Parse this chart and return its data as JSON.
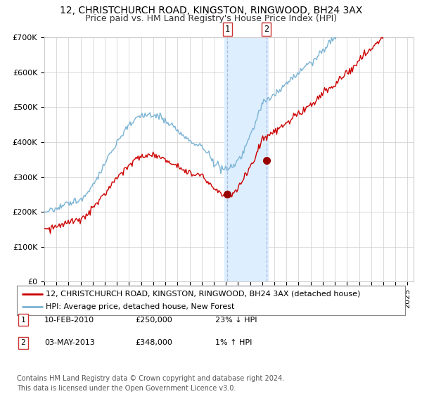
{
  "title": "12, CHRISTCHURCH ROAD, KINGSTON, RINGWOOD, BH24 3AX",
  "subtitle": "Price paid vs. HM Land Registry's House Price Index (HPI)",
  "ylim": [
    0,
    700000
  ],
  "yticks": [
    0,
    100000,
    200000,
    300000,
    400000,
    500000,
    600000,
    700000
  ],
  "ytick_labels": [
    "£0",
    "£100K",
    "£200K",
    "£300K",
    "£400K",
    "£500K",
    "£600K",
    "£700K"
  ],
  "xlim_start": 1995.0,
  "xlim_end": 2025.5,
  "hpi_color": "#7ab3d4",
  "price_color": "#cc0000",
  "marker_color": "#990000",
  "shade_color": "#ddeeff",
  "grid_color": "#cccccc",
  "bg_color": "#ffffff",
  "transaction1_x": 2010.11,
  "transaction1_y": 250000,
  "transaction2_x": 2013.34,
  "transaction2_y": 348000,
  "shade_x1": 2009.9,
  "shade_x2": 2013.5,
  "legend_line1": "12, CHRISTCHURCH ROAD, KINGSTON, RINGWOOD, BH24 3AX (detached house)",
  "legend_line2": "HPI: Average price, detached house, New Forest",
  "ann1_label": "1",
  "ann2_label": "2",
  "note1_num": "1",
  "note1_date": "10-FEB-2010",
  "note1_price": "£250,000",
  "note1_pct": "23% ↓ HPI",
  "note2_num": "2",
  "note2_date": "03-MAY-2013",
  "note2_price": "£348,000",
  "note2_pct": "1% ↑ HPI",
  "footer": "Contains HM Land Registry data © Crown copyright and database right 2024.\nThis data is licensed under the Open Government Licence v3.0.",
  "title_fontsize": 10,
  "subtitle_fontsize": 9,
  "tick_fontsize": 8,
  "legend_fontsize": 8,
  "note_fontsize": 8,
  "footer_fontsize": 7
}
